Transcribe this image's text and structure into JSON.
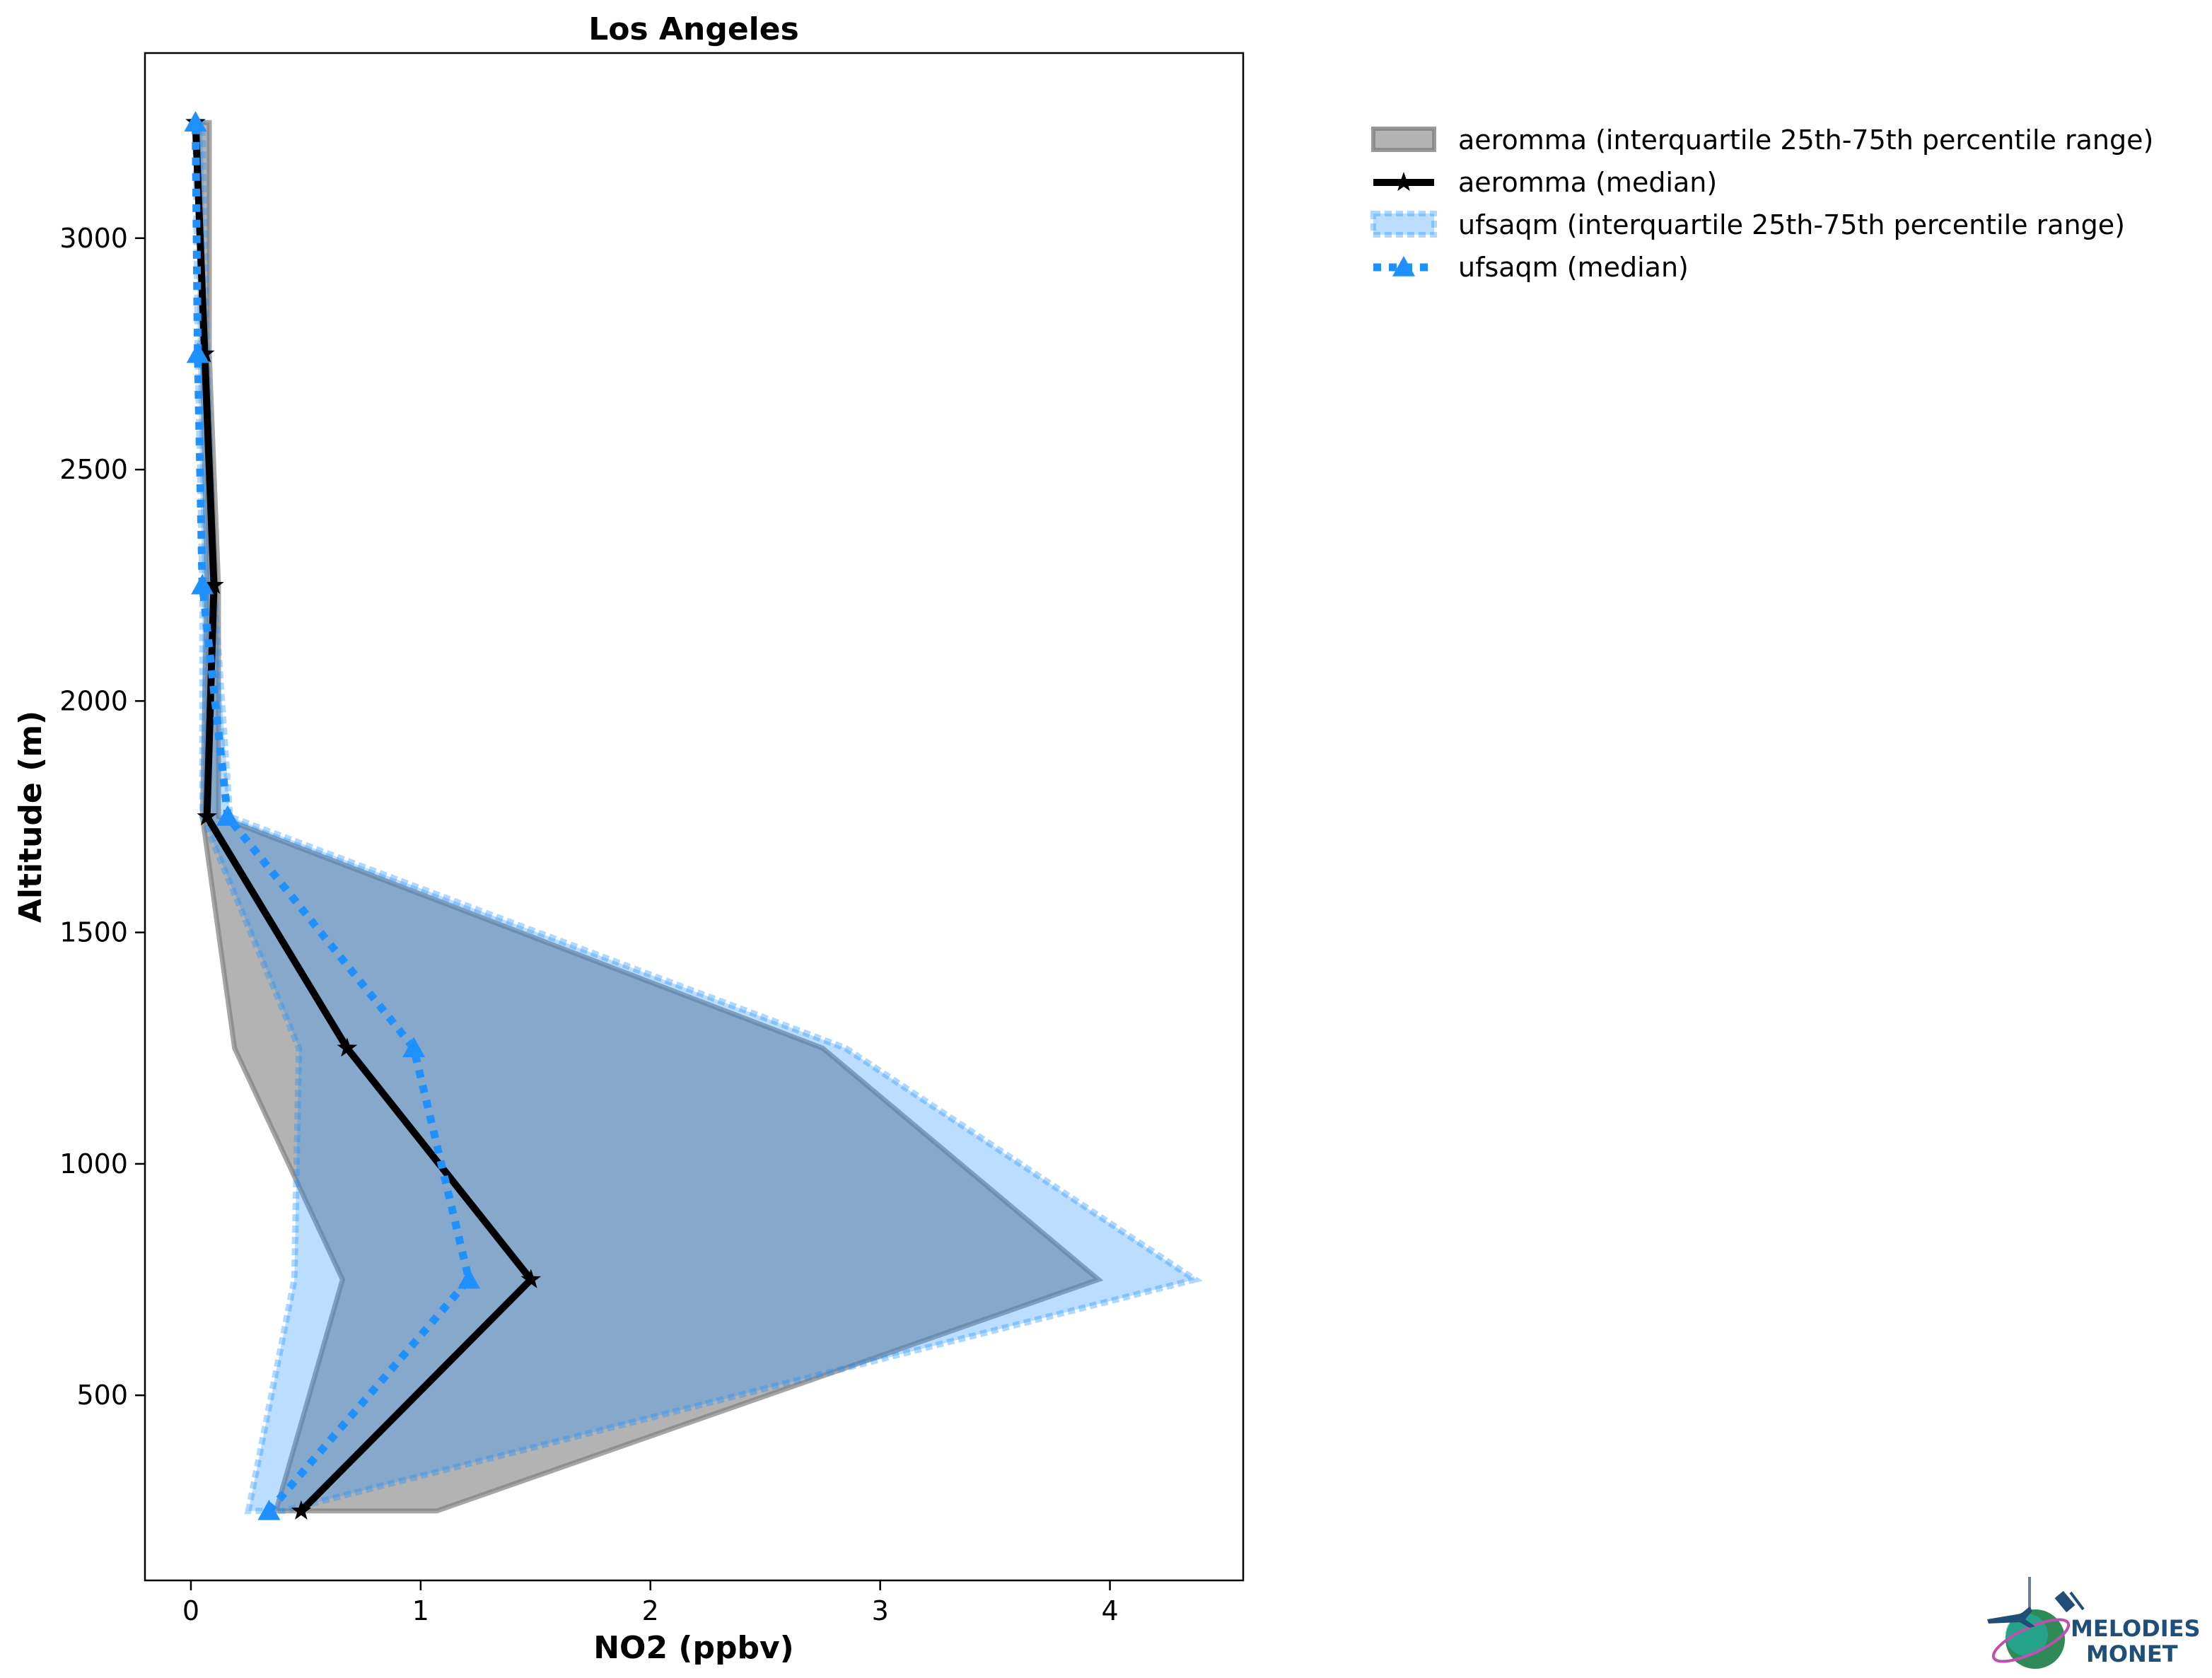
{
  "chart_data": {
    "type": "line",
    "title": "Los Angeles",
    "xlabel": "NO2 (ppbv)",
    "ylabel": "Altitude (m)",
    "xlim": [
      -0.2,
      4.58
    ],
    "ylim": [
      100,
      3400
    ],
    "xticks": [
      0,
      1,
      2,
      3,
      4
    ],
    "yticks": [
      500,
      1000,
      1500,
      2000,
      2500,
      3000
    ],
    "grid": false,
    "legend_position": "outside-right-top",
    "altitudes": [
      250,
      750,
      1250,
      1750,
      2250,
      2750,
      3250
    ],
    "series": [
      {
        "name": "aeromma (interquartile 25th-75th percentile range)",
        "kind": "band",
        "color": "#808080",
        "lower": [
          0.37,
          0.66,
          0.19,
          0.05,
          0.07,
          0.05,
          0.03
        ],
        "upper": [
          1.07,
          3.95,
          2.75,
          0.12,
          0.12,
          0.08,
          0.08
        ]
      },
      {
        "name": "aeromma (median)",
        "kind": "line",
        "color": "#000000",
        "marker": "star",
        "values": [
          0.48,
          1.48,
          0.68,
          0.07,
          0.1,
          0.06,
          0.02
        ]
      },
      {
        "name": "ufsaqm (interquartile 25th-75th percentile range)",
        "kind": "band",
        "color": "#1e90ff",
        "lower": [
          0.25,
          0.45,
          0.47,
          0.05,
          0.05,
          0.03,
          0.02
        ],
        "upper": [
          0.4,
          4.37,
          2.85,
          0.17,
          0.1,
          0.07,
          0.05
        ]
      },
      {
        "name": "ufsaqm (median)",
        "kind": "line",
        "color": "#1e90ff",
        "marker": "triangle",
        "values": [
          0.34,
          1.21,
          0.97,
          0.16,
          0.05,
          0.03,
          0.02
        ]
      }
    ]
  },
  "logo": {
    "text_line1": "MELODIES",
    "text_line2": "MONET"
  }
}
